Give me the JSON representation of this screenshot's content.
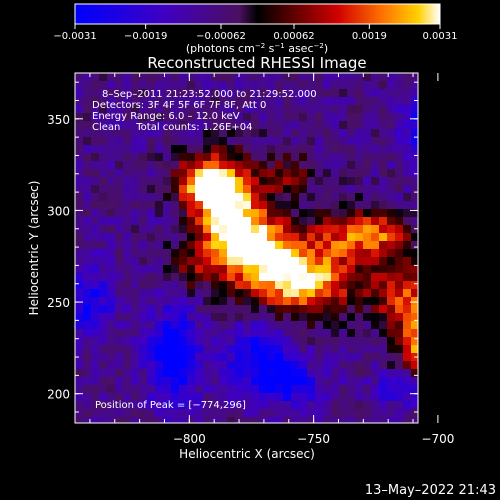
{
  "chart_data": {
    "type": "heatmap",
    "title": "Reconstructed RHESSI Image",
    "xlabel": "Heliocentric X (arcsec)",
    "ylabel": "Heliocentric Y (arcsec)",
    "xlim": [
      -846,
      -708
    ],
    "ylim": [
      184,
      375
    ],
    "xticks": [
      -800,
      -750,
      -700
    ],
    "xtick_labels": [
      "−800",
      "−750",
      "−700"
    ],
    "yticks": [
      200,
      250,
      300,
      350
    ],
    "ytick_labels": [
      "200",
      "250",
      "300",
      "350"
    ],
    "colorbar": {
      "vmin": -0.0031,
      "vmax": 0.0031,
      "ticks": [
        -0.0031,
        -0.0019,
        -0.00062,
        0.00062,
        0.0019,
        0.0031
      ],
      "tick_labels": [
        "−0.0031",
        "−0.0019",
        "−0.00062",
        "0.00062",
        "0.0019",
        "0.0031"
      ],
      "label_main": "(photons cm",
      "label_exp1": "−2",
      "label_mid1": " s",
      "label_exp2": "−1",
      "label_mid2": " asec",
      "label_exp3": "−2",
      "label_end": ")"
    },
    "annotations": {
      "time_range": "8–Sep–2011 21:23:52.000 to 21:29:52.000",
      "detectors": "Detectors: 3F 4F 5F 6F 7F 8F, Att 0",
      "energy": "Energy Range: 6.0 – 12.0 keV",
      "clean": "Clean     Total counts: 1.26E+04",
      "peak": "Position of Peak = [−774,296]"
    },
    "peak": {
      "x": -774,
      "y": 296
    },
    "emission_sources": [
      {
        "x": -784,
        "y": 300,
        "sx": 10,
        "sy": 18,
        "amp": 1.0
      },
      {
        "x": -770,
        "y": 276,
        "sx": 14,
        "sy": 14,
        "amp": 0.9
      },
      {
        "x": -752,
        "y": 260,
        "sx": 14,
        "sy": 12,
        "amp": 0.85
      },
      {
        "x": -794,
        "y": 316,
        "sx": 8,
        "sy": 10,
        "amp": 0.8
      },
      {
        "x": -735,
        "y": 286,
        "sx": 10,
        "sy": 10,
        "amp": 0.6
      },
      {
        "x": -722,
        "y": 288,
        "sx": 8,
        "sy": 7,
        "amp": 0.45
      },
      {
        "x": -705,
        "y": 228,
        "sx": 7,
        "sy": 17,
        "amp": 0.9
      },
      {
        "x": -716,
        "y": 255,
        "sx": 8,
        "sy": 14,
        "amp": 0.55
      },
      {
        "x": -760,
        "y": 320,
        "sx": 8,
        "sy": 8,
        "amp": 0.35
      },
      {
        "x": -800,
        "y": 268,
        "sx": 6,
        "sy": 8,
        "amp": 0.3
      }
    ],
    "dark_regions": [
      {
        "x": -700,
        "y": 345,
        "sx": 8,
        "sy": 14,
        "amp": 1.0
      },
      {
        "x": -806,
        "y": 220,
        "sx": 7,
        "sy": 18,
        "amp": 0.85
      },
      {
        "x": -772,
        "y": 220,
        "sx": 9,
        "sy": 12,
        "amp": 0.7
      },
      {
        "x": -760,
        "y": 205,
        "sx": 9,
        "sy": 8,
        "amp": 0.6
      },
      {
        "x": -840,
        "y": 250,
        "sx": 7,
        "sy": 14,
        "amp": 0.55
      },
      {
        "x": -713,
        "y": 203,
        "sx": 8,
        "sy": 7,
        "amp": 0.55
      }
    ]
  },
  "footer": {
    "timestamp": "13–May–2022 21:43"
  }
}
